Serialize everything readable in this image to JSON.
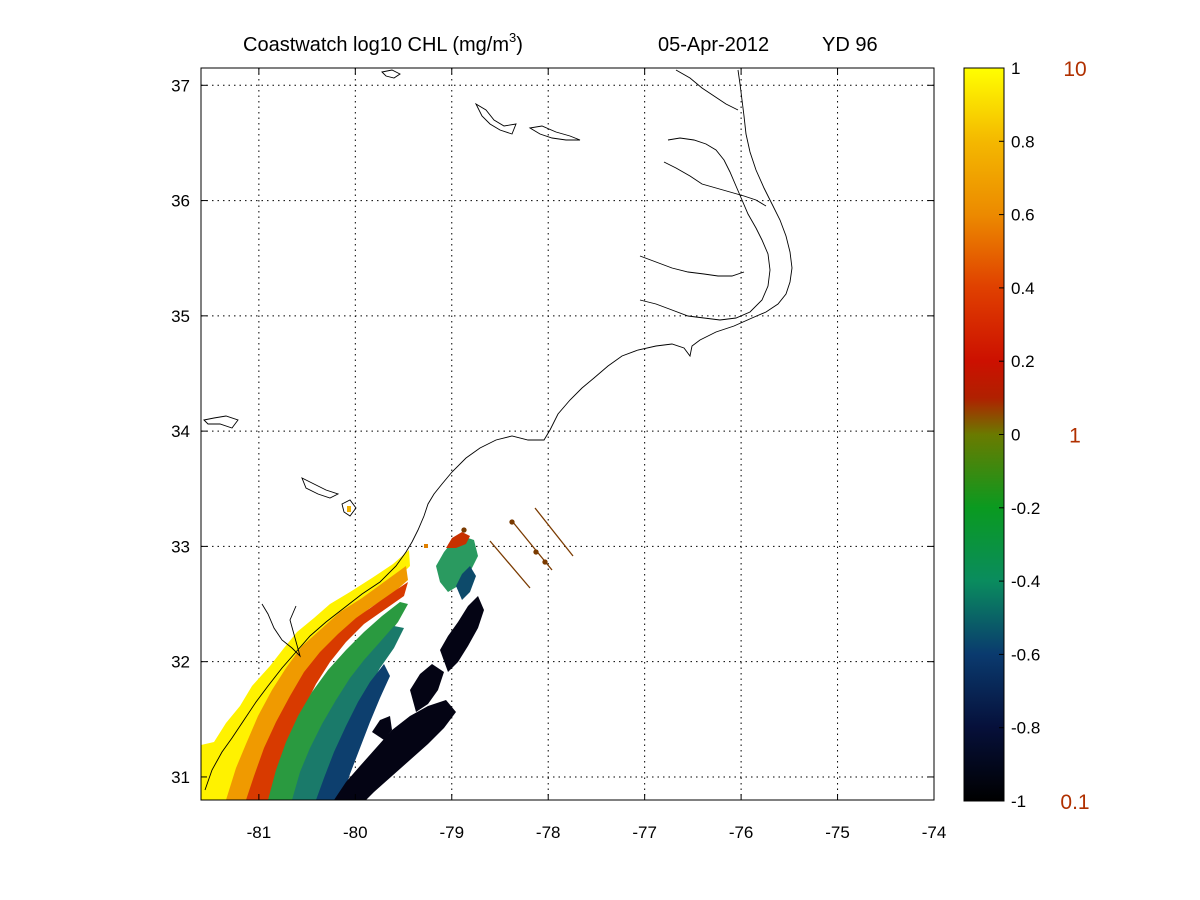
{
  "title": {
    "product": "Coastwatch  log10  CHL (mg/m",
    "unit_sup": "3",
    "unit_close": ")",
    "date": "05-Apr-2012",
    "yearday": "YD 96"
  },
  "map": {
    "lon_range": [
      -81.6,
      -74.0
    ],
    "lat_range": [
      30.8,
      37.15
    ],
    "grid": "dotted",
    "lon_ticks": [
      {
        "value": -81,
        "label": "-81"
      },
      {
        "value": -80,
        "label": "-80"
      },
      {
        "value": -79,
        "label": "-79"
      },
      {
        "value": -78,
        "label": "-78"
      },
      {
        "value": -77,
        "label": "-77"
      },
      {
        "value": -76,
        "label": "-76"
      },
      {
        "value": -75,
        "label": "-75"
      },
      {
        "value": -74,
        "label": "-74"
      }
    ],
    "lat_ticks": [
      {
        "value": 31,
        "label": "31"
      },
      {
        "value": 32,
        "label": "32"
      },
      {
        "value": 33,
        "label": "33"
      },
      {
        "value": 34,
        "label": "34"
      },
      {
        "value": 35,
        "label": "35"
      },
      {
        "value": 36,
        "label": "36"
      },
      {
        "value": 37,
        "label": "37"
      }
    ]
  },
  "colorbar": {
    "range": [
      -1,
      1
    ],
    "ticks": [
      {
        "value": 1,
        "label": "1"
      },
      {
        "value": 0.8,
        "label": "0.8"
      },
      {
        "value": 0.6,
        "label": "0.6"
      },
      {
        "value": 0.4,
        "label": "0.4"
      },
      {
        "value": 0.2,
        "label": "0.2"
      },
      {
        "value": 0,
        "label": "0"
      },
      {
        "value": -0.2,
        "label": "-0.2"
      },
      {
        "value": -0.4,
        "label": "-0.4"
      },
      {
        "value": -0.6,
        "label": "-0.6"
      },
      {
        "value": -0.8,
        "label": "-0.8"
      },
      {
        "value": -1,
        "label": "-1"
      }
    ],
    "ref_labels": [
      {
        "value": 1,
        "label": "10"
      },
      {
        "value": 0,
        "label": "1"
      },
      {
        "value": -1,
        "label": "0.1"
      }
    ],
    "stops": [
      {
        "value": -1.0,
        "color": "#000000"
      },
      {
        "value": -0.8,
        "color": "#06103a"
      },
      {
        "value": -0.6,
        "color": "#0a3a6e"
      },
      {
        "value": -0.4,
        "color": "#0a8c5e"
      },
      {
        "value": -0.2,
        "color": "#0a9a20"
      },
      {
        "value": 0.0,
        "color": "#6a7a00"
      },
      {
        "value": 0.1,
        "color": "#b02000"
      },
      {
        "value": 0.2,
        "color": "#cc1000"
      },
      {
        "value": 0.4,
        "color": "#e04000"
      },
      {
        "value": 0.6,
        "color": "#ec8a00"
      },
      {
        "value": 0.8,
        "color": "#f4b800"
      },
      {
        "value": 1.0,
        "color": "#ffff00"
      }
    ]
  },
  "colors": {
    "coastline": "#000000",
    "track": "#7a3a00"
  }
}
